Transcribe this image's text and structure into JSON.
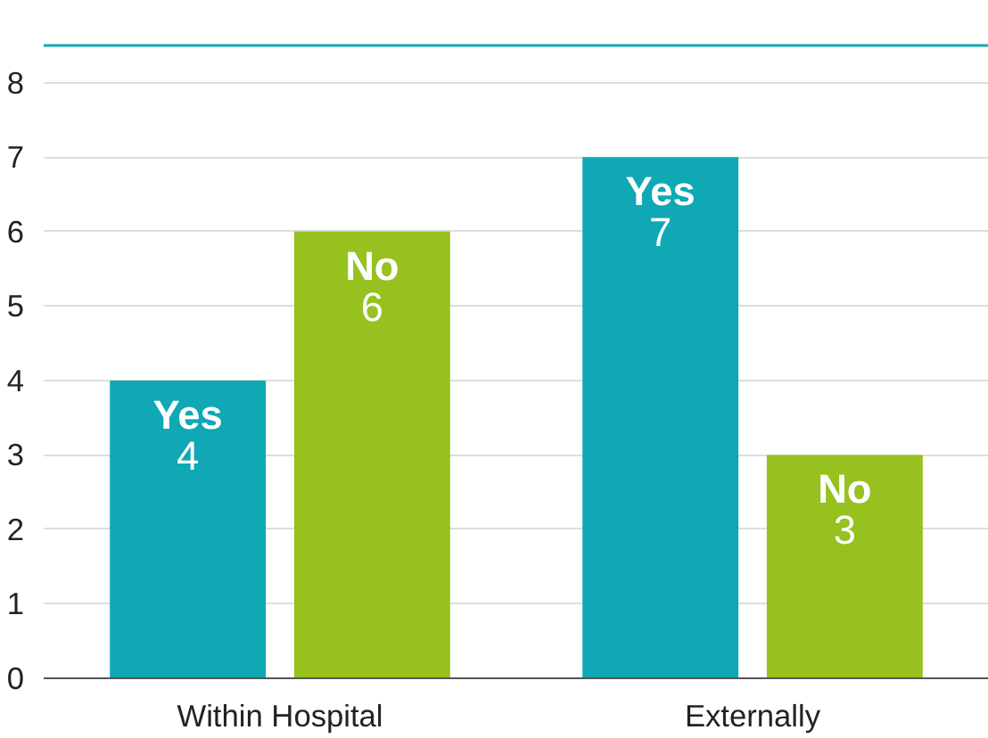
{
  "chart_data": {
    "type": "bar",
    "categories": [
      "Within Hospital",
      "Externally"
    ],
    "series": [
      {
        "name": "Yes",
        "color": "#0fa8b4",
        "values": [
          4,
          7
        ]
      },
      {
        "name": "No",
        "color": "#96c11f",
        "values": [
          6,
          3
        ]
      }
    ],
    "ylim": [
      0,
      8.5
    ],
    "yticks": [
      0,
      1,
      2,
      3,
      4,
      5,
      6,
      7,
      8
    ],
    "grid": "y",
    "legend": false,
    "data_labels": true
  }
}
